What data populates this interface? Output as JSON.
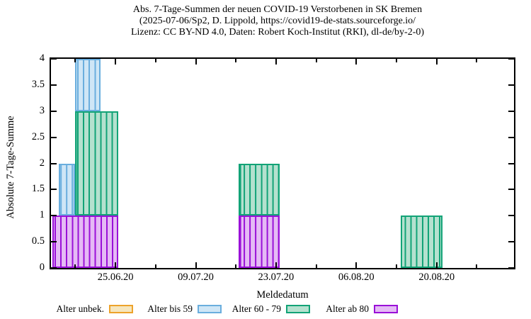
{
  "title": {
    "line1": "Abs. 7-Tage-Summen der neuen COVID-19 Verstorbenen in SK Bremen",
    "line2": "(2025-07-06/Sp2, D. Lippold, https://covid19-de-stats.sourceforge.io/",
    "line3": "Lizenz: CC BY-ND 4.0, Daten: Robert Koch-Institut (RKI), dl-de/by-2-0)"
  },
  "chart_data": {
    "type": "bar",
    "stacked": true,
    "title": "Abs. 7-Tage-Summen der neuen COVID-19 Verstorbenen in SK Bremen",
    "xlabel": "Meldedatum",
    "ylabel": "Absolute 7-Tage-Summe",
    "grid": false,
    "legend_position": "bottom",
    "x_axis": {
      "origin_label": "25.06.20",
      "tick_labels": [
        "25.06.20",
        "09.07.20",
        "23.07.20",
        "06.08.20",
        "20.08.20"
      ],
      "tick_days": [
        0,
        14,
        28,
        42,
        56
      ],
      "minor_tick_days": [
        -7,
        7,
        21,
        35,
        49,
        63
      ],
      "domain_days": [
        -11.25,
        69.5
      ]
    },
    "y_axis": {
      "min": 0,
      "max": 4,
      "step": 0.5,
      "tick_labels": [
        "0",
        "0.5",
        "1",
        "1.5",
        "2",
        "2.5",
        "3",
        "3.5",
        "4"
      ]
    },
    "series": [
      {
        "name": "Alter unbek.",
        "border": "#eda32b",
        "fill": "#f6e6bd"
      },
      {
        "name": "Alter bis 59",
        "border": "#6aaede",
        "fill": "#cfe6f6"
      },
      {
        "name": "Alter 60 - 79",
        "border": "#12a377",
        "fill": "#b5e1cf"
      },
      {
        "name": "Alter ab 80",
        "border": "#9a10d8",
        "fill": "#e5baf5"
      }
    ],
    "stack_order_bottom_to_top": [
      "Alter ab 80",
      "Alter 60 - 79",
      "Alter bis 59"
    ],
    "segments": [
      {
        "series": "Alter ab 80",
        "dates": "14.06.20-25.06.20",
        "from_day": -11.0,
        "to_day": 0.5,
        "y0": 0,
        "y1": 1,
        "value": 1
      },
      {
        "series": "Alter bis 59",
        "dates": "15.06.20-18.06.20",
        "from_day": -9.9,
        "to_day": -7.0,
        "y0": 1,
        "y1": 2,
        "value": 1
      },
      {
        "series": "Alter 60 - 79",
        "dates": "18.06.20-25.06.20",
        "from_day": -7.0,
        "to_day": 0.5,
        "y0": 1,
        "y1": 3,
        "value": 2
      },
      {
        "series": "Alter bis 59",
        "dates": "18.06.20-22.06.20",
        "from_day": -7.0,
        "to_day": -2.6,
        "y0": 3,
        "y1": 4,
        "value": 1
      },
      {
        "series": "Alter ab 80",
        "dates": "17.07.20-23.07.20",
        "from_day": 21.5,
        "to_day": 28.6,
        "y0": 0,
        "y1": 1,
        "value": 1
      },
      {
        "series": "Alter 60 - 79",
        "dates": "17.07.20-23.07.20",
        "from_day": 21.5,
        "to_day": 28.6,
        "y0": 1,
        "y1": 2,
        "value": 1
      },
      {
        "series": "Alter 60 - 79",
        "dates": "14.08.20-21.08.20",
        "from_day": 49.7,
        "to_day": 57.0,
        "y0": 0,
        "y1": 1,
        "value": 1
      }
    ]
  },
  "legend": {
    "items": [
      {
        "label": "Alter unbek.",
        "series": "Alter unbek."
      },
      {
        "label": "Alter bis 59",
        "series": "Alter bis 59"
      },
      {
        "label": "Alter 60 - 79",
        "series": "Alter 60 - 79"
      },
      {
        "label": "Alter ab 80",
        "series": "Alter ab 80"
      }
    ]
  },
  "colors": {
    "axis": "#000000",
    "background": "#ffffff"
  }
}
